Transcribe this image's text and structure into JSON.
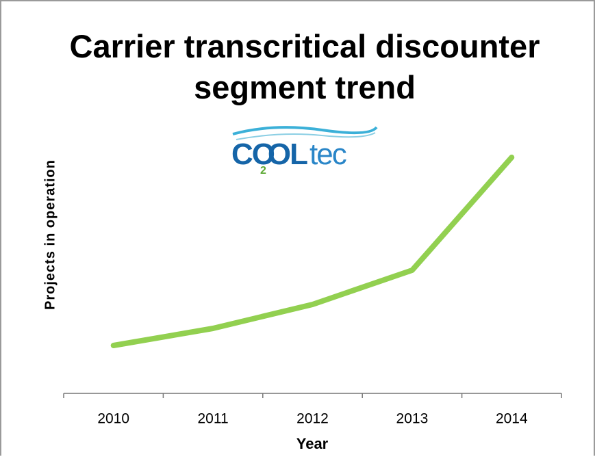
{
  "chart_data": {
    "type": "line",
    "title": "Carrier transcritical discounter segment trend",
    "logo": {
      "parts": [
        "CO",
        "OL",
        "tec"
      ],
      "sub": "2"
    },
    "xlabel": "Year",
    "ylabel": "Projects in operation",
    "categories": [
      "2010",
      "2011",
      "2012",
      "2013",
      "2014"
    ],
    "series": [
      {
        "name": "Projects in operation",
        "color": "#92d050",
        "values": [
          14,
          19,
          26,
          36,
          69
        ]
      }
    ],
    "ylim": [
      0,
      100
    ]
  }
}
